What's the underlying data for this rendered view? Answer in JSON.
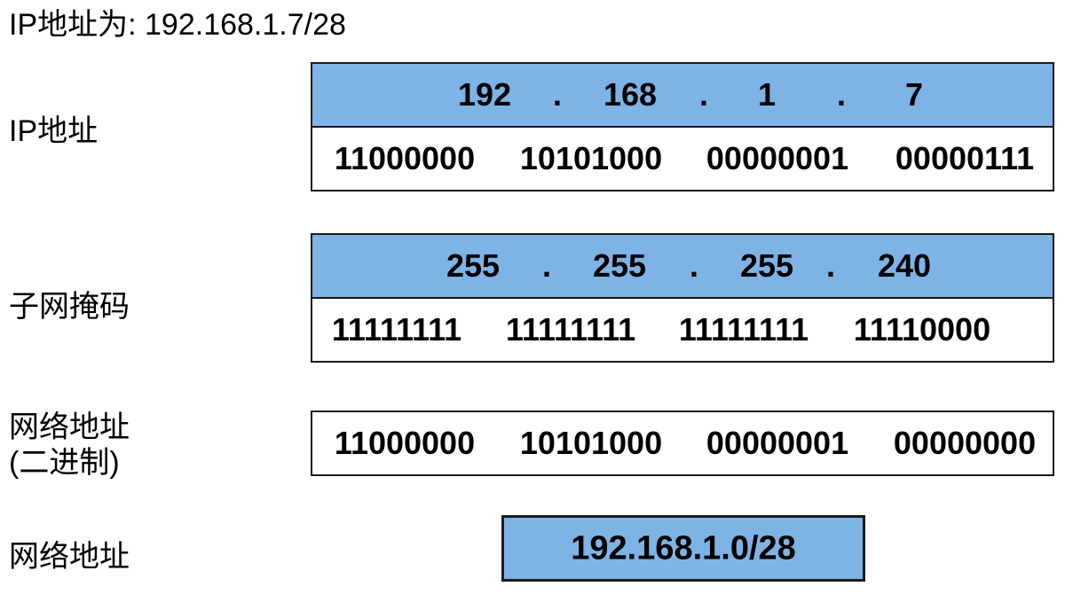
{
  "title": "IP地址为: 192.168.1.7/28",
  "labels": {
    "ip": "IP地址",
    "mask": "子网掩码",
    "network_binary_line1": "网络地址",
    "network_binary_line2": "(二进制)",
    "network": "网络地址"
  },
  "ip_address": {
    "decimal": [
      "192",
      "168",
      "1",
      "7"
    ],
    "binary": [
      "11000000",
      "10101000",
      "00000001",
      "00000111"
    ]
  },
  "subnet_mask": {
    "decimal": [
      "255",
      "255",
      "255",
      "240"
    ],
    "binary": [
      "11111111",
      "11111111",
      "11111111",
      "11110000"
    ]
  },
  "network_address": {
    "binary": [
      "11000000",
      "10101000",
      "00000001",
      "00000000"
    ],
    "cidr": "192.168.1.0/28"
  },
  "separator": ".",
  "colors": {
    "decimal_fill": "#7eb3e6",
    "binary_fill": "#ffffff",
    "border": "#1a1a1a"
  }
}
